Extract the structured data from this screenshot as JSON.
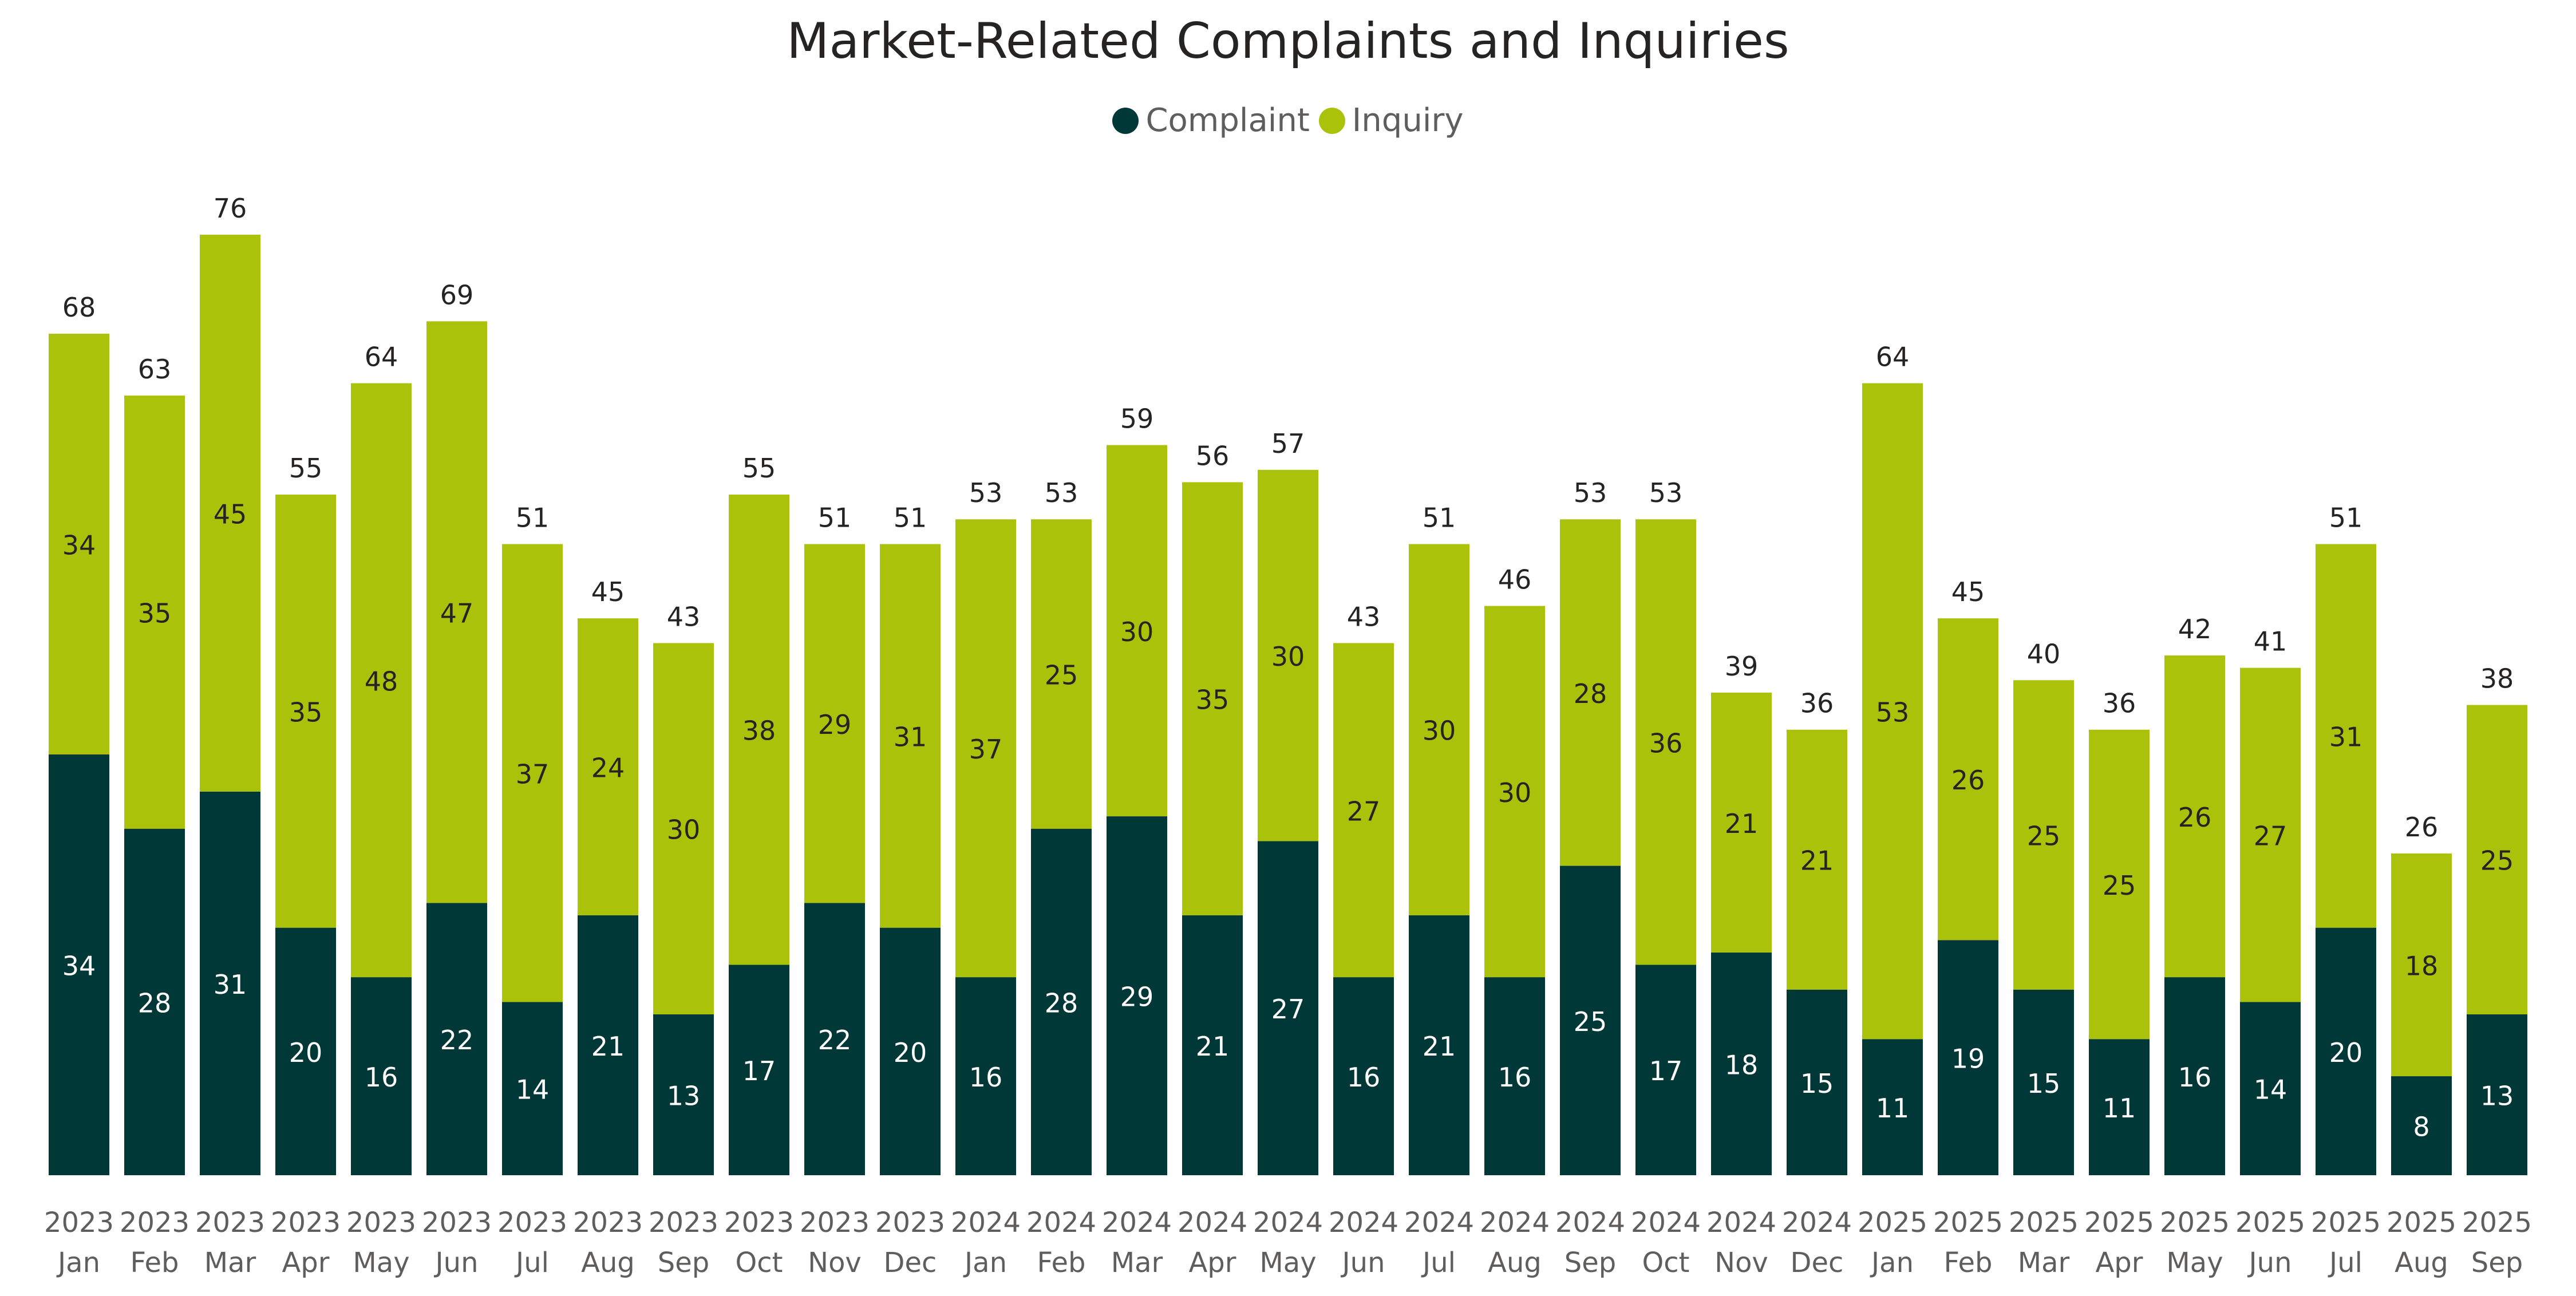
{
  "chart_data": {
    "type": "bar",
    "stacked": true,
    "title": "Market-Related Complaints and Inquiries",
    "legend_position": "top-center",
    "grid": false,
    "categories": [
      [
        "2023",
        "Jan"
      ],
      [
        "2023",
        "Feb"
      ],
      [
        "2023",
        "Mar"
      ],
      [
        "2023",
        "Apr"
      ],
      [
        "2023",
        "May"
      ],
      [
        "2023",
        "Jun"
      ],
      [
        "2023",
        "Jul"
      ],
      [
        "2023",
        "Aug"
      ],
      [
        "2023",
        "Sep"
      ],
      [
        "2023",
        "Oct"
      ],
      [
        "2023",
        "Nov"
      ],
      [
        "2023",
        "Dec"
      ],
      [
        "2024",
        "Jan"
      ],
      [
        "2024",
        "Feb"
      ],
      [
        "2024",
        "Mar"
      ],
      [
        "2024",
        "Apr"
      ],
      [
        "2024",
        "May"
      ],
      [
        "2024",
        "Jun"
      ],
      [
        "2024",
        "Jul"
      ],
      [
        "2024",
        "Aug"
      ],
      [
        "2024",
        "Sep"
      ],
      [
        "2024",
        "Oct"
      ],
      [
        "2024",
        "Nov"
      ],
      [
        "2024",
        "Dec"
      ],
      [
        "2025",
        "Jan"
      ],
      [
        "2025",
        "Feb"
      ],
      [
        "2025",
        "Mar"
      ],
      [
        "2025",
        "Apr"
      ],
      [
        "2025",
        "May"
      ],
      [
        "2025",
        "Jun"
      ],
      [
        "2025",
        "Jul"
      ],
      [
        "2025",
        "Aug"
      ],
      [
        "2025",
        "Sep"
      ]
    ],
    "series": [
      {
        "name": "Complaint",
        "color": "#003737",
        "values": [
          34,
          28,
          31,
          20,
          16,
          22,
          14,
          21,
          13,
          17,
          22,
          20,
          16,
          28,
          29,
          21,
          27,
          16,
          21,
          16,
          25,
          17,
          18,
          15,
          11,
          19,
          15,
          11,
          16,
          14,
          20,
          8,
          13
        ]
      },
      {
        "name": "Inquiry",
        "color": "#abc20a",
        "values": [
          34,
          35,
          45,
          35,
          48,
          47,
          37,
          24,
          30,
          38,
          29,
          31,
          37,
          25,
          30,
          35,
          30,
          27,
          30,
          30,
          28,
          36,
          21,
          21,
          53,
          26,
          25,
          25,
          26,
          27,
          31,
          18,
          25
        ]
      }
    ],
    "totals": [
      68,
      63,
      76,
      55,
      64,
      69,
      51,
      45,
      43,
      55,
      51,
      51,
      53,
      53,
      59,
      56,
      57,
      43,
      51,
      46,
      53,
      53,
      39,
      36,
      64,
      45,
      40,
      36,
      42,
      41,
      51,
      26,
      38
    ],
    "ylim": [
      0,
      76
    ]
  }
}
